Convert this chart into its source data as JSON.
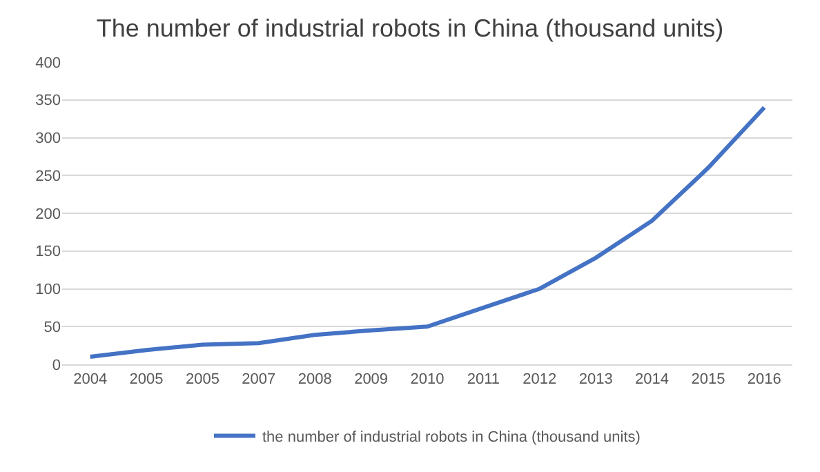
{
  "chart_data": {
    "type": "line",
    "title": "The number of industrial robots in China (thousand units)",
    "categories": [
      "2004",
      "2005",
      "2005",
      "2007",
      "2008",
      "2009",
      "2010",
      "2011",
      "2012",
      "2013",
      "2014",
      "2015",
      "2016"
    ],
    "series": [
      {
        "name": "the number of industrial robots in China (thousand units)",
        "color": "#4472c4",
        "values": [
          10,
          19,
          26,
          28,
          39,
          45,
          50,
          75,
          100,
          141,
          190,
          260,
          340
        ]
      }
    ],
    "ylim": [
      0,
      400
    ],
    "yticks": [
      0,
      50,
      100,
      150,
      200,
      250,
      300,
      350,
      400
    ],
    "grid": "y",
    "legend": "bottom",
    "marker": "none",
    "line_style": "solid"
  }
}
